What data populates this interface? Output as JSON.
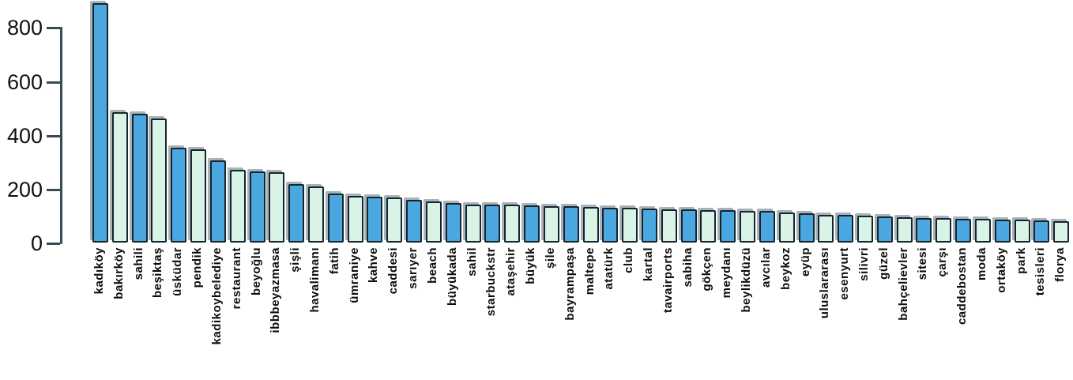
{
  "chart_data": {
    "type": "bar",
    "title": "",
    "xlabel": "",
    "ylabel": "",
    "ylim": [
      0,
      900
    ],
    "yticks": [
      0,
      200,
      400,
      600,
      800
    ],
    "grid": false,
    "legend": null,
    "categories": [
      "kadıköy",
      "bakırköy",
      "sahili",
      "beşiktaş",
      "üsküdar",
      "pendik",
      "kadikoybelediye",
      "restaurant",
      "beyoğlu",
      "ibbbeyazmasa",
      "şişli",
      "havalimanı",
      "fatih",
      "ümraniye",
      "kahve",
      "caddesi",
      "sarıyer",
      "beach",
      "büyükada",
      "sahil",
      "starbuckstr",
      "ataşehir",
      "büyük",
      "şile",
      "bayrampaşa",
      "maltepe",
      "atatürk",
      "club",
      "kartal",
      "tavairports",
      "sabiha",
      "gökçen",
      "meydanı",
      "beylikdüzü",
      "avcılar",
      "beykoz",
      "eyüp",
      "uluslararası",
      "esenyurt",
      "silivri",
      "güzel",
      "bahçelievler",
      "sitesi",
      "çarşı",
      "caddebostan",
      "moda",
      "ortaköy",
      "park",
      "tesisleri",
      "florya"
    ],
    "values": [
      888,
      485,
      477,
      460,
      351,
      347,
      304,
      270,
      263,
      261,
      218,
      208,
      182,
      172,
      169,
      166,
      159,
      152,
      146,
      142,
      141,
      140,
      138,
      136,
      134,
      131,
      130,
      128,
      125,
      124,
      122,
      120,
      119,
      117,
      116,
      111,
      108,
      104,
      103,
      99,
      96,
      93,
      91,
      90,
      89,
      87,
      85,
      84,
      83,
      79
    ],
    "colors": {
      "bar_fill_odd": "#4BA7E0",
      "bar_fill_even": "#D9F3E6",
      "bar_border": "#16242C",
      "bar_shadow": "#7A8995",
      "axis": "#3A4A52",
      "tick_text": "#111111",
      "label_text": "#0D0D0D"
    }
  }
}
